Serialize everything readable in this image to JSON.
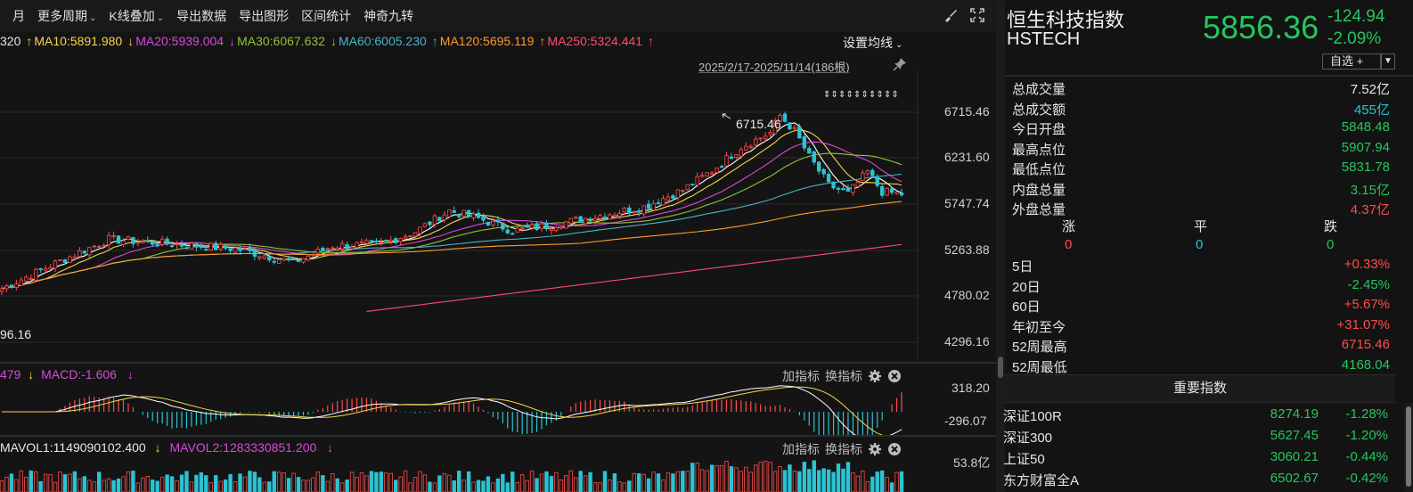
{
  "toolbar": {
    "items": [
      "月",
      "更多周期",
      "K线叠加",
      "导出数据",
      "导出图形",
      "区间统计",
      "神奇九转"
    ]
  },
  "ma_legend": {
    "prefix": "320",
    "ma10": "MA10:5891.980",
    "ma20": "MA20:5939.004",
    "ma30": "MA30:6067.632",
    "ma60": "MA60:6005.230",
    "ma120": "MA120:5695.119",
    "ma250": "MA250:5324.441",
    "settings": "设置均线",
    "arrow_up": "↑",
    "arrow_down": "↓"
  },
  "date_range": "2025/2/17-2025/11/14(186根)",
  "price_axis": [
    "6715.46",
    "6231.60",
    "5747.74",
    "5263.88",
    "4780.02",
    "4296.16"
  ],
  "high_label": "6715.46",
  "low_label": "96.16",
  "macd": {
    "legend_a": "479",
    "legend_b": "MACD:-1.606",
    "axis_top": "318.20",
    "axis_bottom": "-296.07"
  },
  "indicator_controls": {
    "add": "加指标",
    "switch": "换指标"
  },
  "volume": {
    "mavol1": "MAVOL1:1149090102.400",
    "mavol2": "MAVOL2:1283330851.200",
    "axis_top": "53.8亿"
  },
  "quote": {
    "name": "恒生科技指数",
    "code": "HSTECH",
    "price": "5856.36",
    "change": "-124.94",
    "change_pct": "-2.09%",
    "watch_label": "自选 +",
    "watch_drop": "▼"
  },
  "stats": [
    {
      "label": "总成交量",
      "value": "7.52亿",
      "color": "#e6e6e6"
    },
    {
      "label": "总成交额",
      "value": "455亿",
      "color": "#2bc4d3"
    },
    {
      "label": "今日开盘",
      "value": "5848.48",
      "color": "#27c45f"
    },
    {
      "label": "最高点位",
      "value": "5907.94",
      "color": "#27c45f"
    },
    {
      "label": "最低点位",
      "value": "5831.78",
      "color": "#27c45f"
    },
    {
      "label": "内盘总量",
      "value": "3.15亿",
      "color": "#27c45f"
    },
    {
      "label": "外盘总量",
      "value": "4.37亿",
      "color": "#ff4d4d"
    }
  ],
  "updown": {
    "up_label": "涨",
    "flat_label": "平",
    "down_label": "跌",
    "up": "0",
    "flat": "0",
    "down": "0"
  },
  "periods": [
    {
      "label": "5日",
      "value": "+0.33%",
      "color": "#ff4d4d"
    },
    {
      "label": "20日",
      "value": "-2.45%",
      "color": "#27c45f"
    },
    {
      "label": "60日",
      "value": "+5.67%",
      "color": "#ff4d4d"
    },
    {
      "label": "年初至今",
      "value": "+31.07%",
      "color": "#ff4d4d"
    },
    {
      "label": "52周最高",
      "value": "6715.46",
      "color": "#ff4d4d"
    },
    {
      "label": "52周最低",
      "value": "4168.04",
      "color": "#27c45f"
    }
  ],
  "important": {
    "title": "重要指数",
    "rows": [
      {
        "name": "深证100R",
        "price": "8274.19",
        "pct": "-1.28%"
      },
      {
        "name": "深证300",
        "price": "5627.45",
        "pct": "-1.20%"
      },
      {
        "name": "上证50",
        "price": "3060.21",
        "pct": "-0.44%"
      },
      {
        "name": "东方财富全A",
        "price": "6502.67",
        "pct": "-0.42%"
      }
    ]
  },
  "colors": {
    "up": "#ff4d4d",
    "down": "#27c45f",
    "ma5": "#ffffff",
    "ma10": "#f7d64a",
    "ma20": "#d64ad6",
    "ma30": "#8fc33a",
    "ma60": "#46b4c8",
    "ma120": "#ff9a2e",
    "ma250": "#ff4d6a"
  }
}
